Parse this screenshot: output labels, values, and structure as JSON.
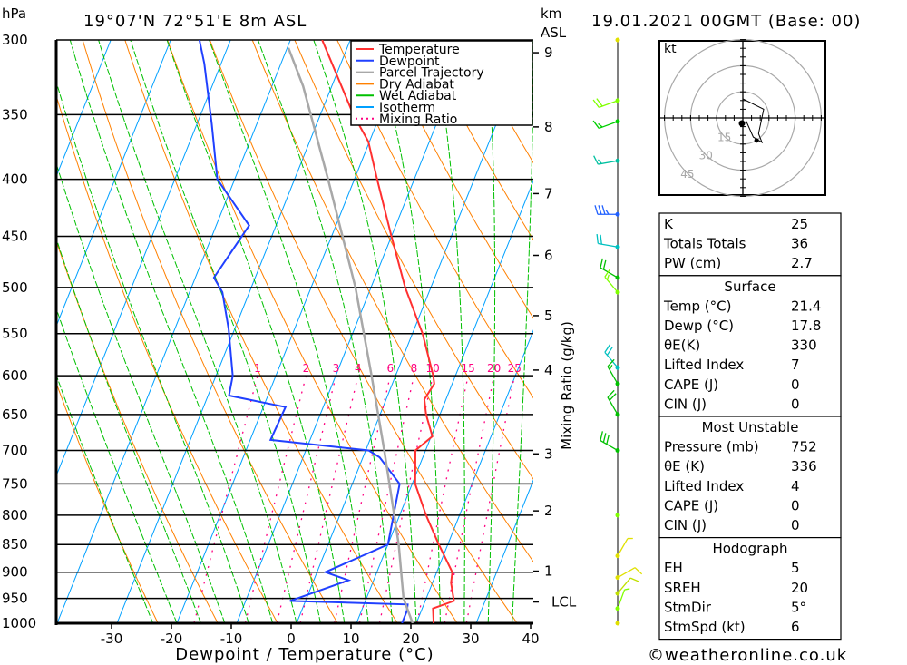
{
  "header": {
    "pressure_unit": "hPa",
    "location": "19°07'N 72°51'E 8m ASL",
    "km_unit": "km",
    "asl": "ASL",
    "datetime": "19.01.2021 00GMT (Base: 00)"
  },
  "chart_data": {
    "type": "line",
    "subtype": "skew-T log-P",
    "xlabel": "Dewpoint / Temperature (°C)",
    "ylabel": "hPa",
    "right_label": "Mixing Ratio (g/kg)",
    "x_ticks": [
      -30,
      -20,
      -10,
      0,
      10,
      20,
      30,
      40
    ],
    "x_tick_labels": [
      "-30",
      "-20",
      "-10",
      "0",
      "10",
      "20",
      "30",
      "40"
    ],
    "xlim": [
      -40,
      40
    ],
    "ylim": [
      1000,
      300
    ],
    "pressure_levels": [
      300,
      350,
      400,
      450,
      500,
      550,
      600,
      650,
      700,
      750,
      800,
      850,
      900,
      950,
      1000
    ],
    "pressure_labels": [
      "300",
      "350",
      "400",
      "450",
      "500",
      "550",
      "600",
      "650",
      "700",
      "750",
      "800",
      "850",
      "900",
      "950",
      "1000"
    ],
    "km_ticks": [
      {
        "label": "9",
        "p": 308
      },
      {
        "label": "8",
        "p": 359
      },
      {
        "label": "7",
        "p": 412
      },
      {
        "label": "6",
        "p": 468
      },
      {
        "label": "5",
        "p": 530
      },
      {
        "label": "4",
        "p": 593
      },
      {
        "label": "3",
        "p": 705
      },
      {
        "label": "2",
        "p": 793
      },
      {
        "label": "1",
        "p": 898
      },
      {
        "label": "LCL",
        "p": 957
      }
    ],
    "mixing_ratio_labels": [
      "1",
      "2",
      "3",
      "4",
      "6",
      "8",
      "10",
      "15",
      "20",
      "25"
    ],
    "mixing_ratio_values": [
      1,
      2,
      3,
      4,
      6,
      8,
      10,
      15,
      20,
      25
    ],
    "legend": [
      {
        "label": "Temperature",
        "color": "#ff3030"
      },
      {
        "label": "Dewpoint",
        "color": "#2040ff"
      },
      {
        "label": "Parcel Trajectory",
        "color": "#a8a8a8"
      },
      {
        "label": "Dry Adiabat",
        "color": "#ff8000"
      },
      {
        "label": "Wet Adiabat",
        "color": "#00c000"
      },
      {
        "label": "Isotherm",
        "color": "#00a0ff"
      },
      {
        "label": "Mixing Ratio",
        "color": "#ff0080"
      }
    ],
    "legend_position": "top-right",
    "series": [
      {
        "name": "Temperature",
        "color": "#ff3030",
        "p": [
          1000,
          970,
          955,
          920,
          900,
          850,
          800,
          750,
          700,
          680,
          650,
          630,
          610,
          600,
          550,
          500,
          450,
          400,
          370,
          350,
          300
        ],
        "t": [
          22.9,
          21.8,
          24.8,
          23.1,
          22.6,
          18.5,
          14.4,
          10.5,
          8.3,
          10.2,
          7.7,
          6.4,
          7.0,
          6.3,
          1.7,
          -4.3,
          -10.0,
          -16.2,
          -20.2,
          -24.5,
          -34.7
        ]
      },
      {
        "name": "Dewpoint",
        "color": "#2040ff",
        "p": [
          1000,
          975,
          962,
          955,
          915,
          900,
          850,
          750,
          710,
          700,
          685,
          640,
          625,
          600,
          545,
          505,
          490,
          440,
          400,
          357,
          315,
          300
        ],
        "t": [
          17.6,
          17.6,
          17.3,
          -2.6,
          5.8,
          1.4,
          10.0,
          7.9,
          2.8,
          0.5,
          -16.6,
          -16.3,
          -26.5,
          -27.2,
          -31.0,
          -34.5,
          -36.9,
          -34.5,
          -42.9,
          -47.5,
          -52.8,
          -55.2
        ]
      },
      {
        "name": "Parcel Trajectory",
        "color": "#a8a8a8",
        "p": [
          1000,
          950,
          850,
          700,
          600,
          500,
          400,
          330,
          305
        ],
        "t": [
          19.4,
          16.2,
          11.8,
          3.1,
          -4.0,
          -12.6,
          -24.4,
          -34.8,
          -39.8
        ]
      }
    ],
    "winds": [
      {
        "p": 300,
        "dir": 0,
        "kt": 0,
        "color": "#e0e000"
      },
      {
        "p": 340,
        "dir": 250,
        "kt": 20,
        "color": "#80ff00"
      },
      {
        "p": 355,
        "dir": 250,
        "kt": 15,
        "color": "#00d000"
      },
      {
        "p": 385,
        "dir": 260,
        "kt": 15,
        "color": "#00c0a0"
      },
      {
        "p": 430,
        "dir": 270,
        "kt": 35,
        "color": "#2060ff"
      },
      {
        "p": 460,
        "dir": 280,
        "kt": 20,
        "color": "#00c0c0"
      },
      {
        "p": 490,
        "dir": 300,
        "kt": 20,
        "color": "#00c000"
      },
      {
        "p": 505,
        "dir": 320,
        "kt": 15,
        "color": "#80ff00"
      },
      {
        "p": 590,
        "dir": 320,
        "kt": 20,
        "color": "#00c0c0"
      },
      {
        "p": 610,
        "dir": 330,
        "kt": 15,
        "color": "#00c000"
      },
      {
        "p": 650,
        "dir": 330,
        "kt": 20,
        "color": "#00c000"
      },
      {
        "p": 700,
        "dir": 300,
        "kt": 30,
        "color": "#00c000"
      },
      {
        "p": 800,
        "dir": 0,
        "kt": 0,
        "color": "#80ff00"
      },
      {
        "p": 870,
        "dir": 30,
        "kt": 5,
        "color": "#e0e000"
      },
      {
        "p": 910,
        "dir": 60,
        "kt": 10,
        "color": "#e0e000"
      },
      {
        "p": 940,
        "dir": 40,
        "kt": 10,
        "color": "#c0e000"
      },
      {
        "p": 970,
        "dir": 20,
        "kt": 5,
        "color": "#80ff00"
      },
      {
        "p": 1000,
        "dir": 0,
        "kt": 0,
        "color": "#e0e000"
      }
    ]
  },
  "hodograph": {
    "unit": "kt",
    "rings": [
      15,
      30,
      45
    ],
    "ring_labels": [
      "15",
      "30",
      "45"
    ],
    "points_kt": [
      [
        0,
        11
      ],
      [
        12,
        5
      ],
      [
        9,
        -9
      ],
      [
        11,
        -14
      ],
      [
        6,
        -11
      ],
      [
        2,
        -2
      ],
      [
        -1,
        -4
      ]
    ]
  },
  "indices": {
    "general": [
      {
        "label": "K",
        "value": "25"
      },
      {
        "label": "Totals Totals",
        "value": "36"
      },
      {
        "label": "PW (cm)",
        "value": "2.7"
      }
    ],
    "surface": {
      "title": "Surface",
      "rows": [
        {
          "label": "Temp (°C)",
          "value": "21.4"
        },
        {
          "label": "Dewp (°C)",
          "value": "17.8"
        },
        {
          "label": "θE(K)",
          "value": "330"
        },
        {
          "label": "Lifted Index",
          "value": "7"
        },
        {
          "label": "CAPE (J)",
          "value": "0"
        },
        {
          "label": "CIN (J)",
          "value": "0"
        }
      ]
    },
    "most_unstable": {
      "title": "Most Unstable",
      "rows": [
        {
          "label": "Pressure (mb)",
          "value": "752"
        },
        {
          "label": "θE (K)",
          "value": "336"
        },
        {
          "label": "Lifted Index",
          "value": "4"
        },
        {
          "label": "CAPE (J)",
          "value": "0"
        },
        {
          "label": "CIN (J)",
          "value": "0"
        }
      ]
    },
    "hodograph": {
      "title": "Hodograph",
      "rows": [
        {
          "label": "EH",
          "value": "5"
        },
        {
          "label": "SREH",
          "value": "20"
        },
        {
          "label": "StmDir",
          "value": "5°"
        },
        {
          "label": "StmSpd (kt)",
          "value": "6"
        }
      ]
    }
  },
  "footer": {
    "copyright": "©weatheronline.co.uk"
  }
}
